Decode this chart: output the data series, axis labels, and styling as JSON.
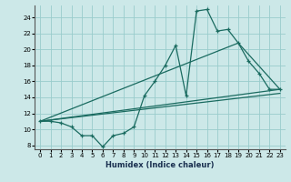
{
  "title": "",
  "xlabel": "Humidex (Indice chaleur)",
  "background_color": "#cce8e8",
  "grid_color": "#99cccc",
  "line_color": "#1a6b60",
  "xlim": [
    -0.5,
    23.5
  ],
  "ylim": [
    7.5,
    25.5
  ],
  "xticks": [
    0,
    1,
    2,
    3,
    4,
    5,
    6,
    7,
    8,
    9,
    10,
    11,
    12,
    13,
    14,
    15,
    16,
    17,
    18,
    19,
    20,
    21,
    22,
    23
  ],
  "yticks": [
    8,
    10,
    12,
    14,
    16,
    18,
    20,
    22,
    24
  ],
  "line1_x": [
    0,
    1,
    2,
    3,
    4,
    5,
    6,
    7,
    8,
    9,
    10,
    11,
    12,
    13,
    14,
    15,
    16,
    17,
    18,
    19,
    20,
    21,
    22,
    23
  ],
  "line1_y": [
    11.0,
    11.0,
    10.8,
    10.3,
    9.2,
    9.2,
    7.8,
    9.2,
    9.5,
    10.3,
    14.2,
    16.0,
    18.0,
    20.5,
    14.2,
    24.8,
    25.0,
    22.3,
    22.5,
    20.8,
    18.5,
    17.0,
    15.0,
    15.0
  ],
  "line2_x": [
    0,
    23
  ],
  "line2_y": [
    11.0,
    15.0
  ],
  "line3_x": [
    0,
    23
  ],
  "line3_y": [
    11.0,
    14.5
  ],
  "line4_x": [
    0,
    19,
    23
  ],
  "line4_y": [
    11.0,
    20.8,
    15.0
  ]
}
